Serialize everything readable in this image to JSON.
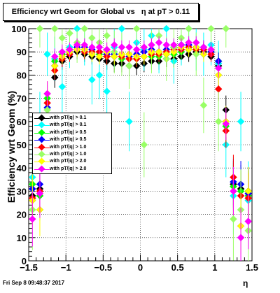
{
  "chart_data": {
    "type": "scatter",
    "title": "Efficiency wrt Geom for Global vs   η at pT > 0.11",
    "xlabel": "η",
    "ylabel": "Efficiency wrt Geom (%)",
    "xlim": [
      -1.5,
      1.5
    ],
    "ylim": [
      0,
      100
    ],
    "x_ticks": [
      "−1.5",
      "−1",
      "−0.5",
      "0",
      "0.5",
      "1",
      "1.5"
    ],
    "y_ticks": [
      "0",
      "10",
      "20",
      "30",
      "40",
      "50",
      "60",
      "70",
      "80",
      "90",
      "100"
    ],
    "grid": true,
    "legend_position": "left-middle",
    "series": [
      {
        "name": "with pT/|q| > 0.1",
        "color": "#000000",
        "values": [
          [
            -1.45,
            28
          ],
          [
            -1.35,
            31
          ],
          [
            -1.25,
            55
          ],
          [
            -1.15,
            79
          ],
          [
            -1.05,
            86
          ],
          [
            -0.95,
            88
          ],
          [
            -0.85,
            90
          ],
          [
            -0.75,
            89
          ],
          [
            -0.65,
            88
          ],
          [
            -0.55,
            87
          ],
          [
            -0.45,
            86
          ],
          [
            -0.35,
            85
          ],
          [
            -0.25,
            85
          ],
          [
            -0.15,
            84
          ],
          [
            -0.05,
            84
          ],
          [
            0.05,
            85
          ],
          [
            0.15,
            86
          ],
          [
            0.25,
            86
          ],
          [
            0.35,
            87
          ],
          [
            0.45,
            87
          ],
          [
            0.55,
            88
          ],
          [
            0.65,
            89
          ],
          [
            0.75,
            90
          ],
          [
            0.85,
            90
          ],
          [
            0.95,
            88
          ],
          [
            1.05,
            84
          ],
          [
            1.15,
            65
          ],
          [
            1.25,
            33
          ],
          [
            1.35,
            31
          ],
          [
            1.45,
            30
          ]
        ]
      },
      {
        "name": "with pT/|q| > 0.1",
        "color": "#00ffff",
        "values": [
          [
            -1.45,
            36
          ],
          [
            -1.35,
            60
          ],
          [
            -1.25,
            89
          ],
          [
            -1.15,
            87
          ],
          [
            -1.05,
            75
          ],
          [
            -0.95,
            92
          ],
          [
            -0.85,
            100
          ],
          [
            -0.75,
            93
          ],
          [
            -0.65,
            78
          ],
          [
            -0.55,
            80
          ],
          [
            -0.45,
            73
          ],
          [
            -0.35,
            92
          ],
          [
            -0.25,
            100
          ],
          [
            -0.15,
            60
          ],
          [
            -0.05,
            94
          ],
          [
            0.05,
            91
          ],
          [
            0.15,
            97
          ],
          [
            0.25,
            90
          ],
          [
            0.35,
            100
          ],
          [
            0.45,
            86
          ],
          [
            0.55,
            93
          ],
          [
            0.65,
            100
          ],
          [
            0.75,
            91
          ],
          [
            0.85,
            89
          ],
          [
            0.95,
            93
          ],
          [
            1.05,
            85
          ],
          [
            1.15,
            50
          ],
          [
            1.25,
            28
          ],
          [
            1.35,
            60
          ],
          [
            1.45,
            26
          ]
        ]
      },
      {
        "name": "with pT/|q| > 0.5",
        "color": "#00ff00",
        "values": [
          [
            -1.45,
            33
          ],
          [
            -1.35,
            28
          ],
          [
            -1.25,
            70
          ],
          [
            -1.15,
            86
          ],
          [
            -1.05,
            89
          ],
          [
            -0.95,
            91
          ],
          [
            -0.85,
            91
          ],
          [
            -0.75,
            90
          ],
          [
            -0.65,
            89
          ],
          [
            -0.55,
            89
          ],
          [
            -0.45,
            88
          ],
          [
            -0.35,
            88
          ],
          [
            -0.25,
            87
          ],
          [
            -0.15,
            87
          ],
          [
            -0.05,
            87
          ],
          [
            0.05,
            88
          ],
          [
            0.15,
            88
          ],
          [
            0.25,
            88
          ],
          [
            0.35,
            89
          ],
          [
            0.45,
            89
          ],
          [
            0.55,
            90
          ],
          [
            0.65,
            91
          ],
          [
            0.75,
            91
          ],
          [
            0.85,
            91
          ],
          [
            0.95,
            90
          ],
          [
            1.05,
            86
          ],
          [
            1.15,
            58
          ],
          [
            1.25,
            32
          ],
          [
            1.35,
            30
          ],
          [
            1.45,
            28
          ]
        ]
      },
      {
        "name": "with pT/|q| > 0.5",
        "color": "#0000ff",
        "values": [
          [
            -1.45,
            31
          ],
          [
            -1.35,
            33
          ],
          [
            -1.25,
            66
          ],
          [
            -1.15,
            84
          ],
          [
            -1.05,
            87
          ],
          [
            -0.95,
            90
          ],
          [
            -0.85,
            92
          ],
          [
            -0.75,
            92
          ],
          [
            -0.65,
            91
          ],
          [
            -0.55,
            90
          ],
          [
            -0.45,
            89
          ],
          [
            -0.35,
            89
          ],
          [
            -0.25,
            89
          ],
          [
            -0.15,
            88
          ],
          [
            -0.05,
            89
          ],
          [
            0.05,
            90
          ],
          [
            0.15,
            91
          ],
          [
            0.25,
            90
          ],
          [
            0.35,
            91
          ],
          [
            0.45,
            92
          ],
          [
            0.55,
            93
          ],
          [
            0.65,
            93
          ],
          [
            0.75,
            92
          ],
          [
            0.85,
            92
          ],
          [
            0.95,
            90
          ],
          [
            1.05,
            86
          ],
          [
            1.15,
            60
          ],
          [
            1.25,
            34
          ],
          [
            1.35,
            33
          ],
          [
            1.45,
            29
          ]
        ]
      },
      {
        "name": "with pT/|q| > 1.0",
        "color": "#ff0000",
        "values": [
          [
            -1.45,
            27
          ],
          [
            -1.35,
            30
          ],
          [
            -1.25,
            68
          ],
          [
            -1.15,
            82
          ],
          [
            -1.05,
            87
          ],
          [
            -0.95,
            89
          ],
          [
            -0.85,
            91
          ],
          [
            -0.75,
            90
          ],
          [
            -0.65,
            90
          ],
          [
            -0.55,
            90
          ],
          [
            -0.45,
            88
          ],
          [
            -0.35,
            88
          ],
          [
            -0.25,
            88
          ],
          [
            -0.15,
            87
          ],
          [
            -0.05,
            87
          ],
          [
            0.05,
            88
          ],
          [
            0.15,
            89
          ],
          [
            0.25,
            89
          ],
          [
            0.35,
            90
          ],
          [
            0.45,
            91
          ],
          [
            0.55,
            91
          ],
          [
            0.65,
            92
          ],
          [
            0.75,
            91
          ],
          [
            0.85,
            91
          ],
          [
            0.95,
            89
          ],
          [
            1.05,
            74
          ],
          [
            1.15,
            56
          ],
          [
            1.25,
            36
          ],
          [
            1.35,
            28
          ],
          [
            1.45,
            27
          ]
        ]
      },
      {
        "name": "with pT/|q| > 1.0",
        "color": "#99ff66",
        "values": [
          [
            -1.45,
            22
          ],
          [
            -1.35,
            100
          ],
          [
            -1.25,
            65
          ],
          [
            -1.15,
            100
          ],
          [
            -1.05,
            96
          ],
          [
            -0.95,
            98
          ],
          [
            -0.85,
            94
          ],
          [
            -0.75,
            100
          ],
          [
            -0.65,
            96
          ],
          [
            -0.55,
            94
          ],
          [
            -0.45,
            97
          ],
          [
            -0.35,
            90
          ],
          [
            -0.25,
            89
          ],
          [
            -0.15,
            84
          ],
          [
            -0.05,
            100
          ],
          [
            0.05,
            50
          ],
          [
            0.15,
            90
          ],
          [
            0.25,
            97
          ],
          [
            0.35,
            87
          ],
          [
            0.45,
            92
          ],
          [
            0.55,
            96
          ],
          [
            0.65,
            100
          ],
          [
            0.75,
            89
          ],
          [
            0.85,
            67
          ],
          [
            0.95,
            100
          ],
          [
            1.05,
            60
          ],
          [
            1.15,
            100
          ],
          [
            1.25,
            18
          ],
          [
            1.35,
            22
          ],
          [
            1.45,
            13
          ]
        ]
      },
      {
        "name": "with pT/|q| > 2.0",
        "color": "#ffff00",
        "values": [
          [
            -1.45,
            26
          ],
          [
            -1.35,
            22
          ],
          [
            -1.25,
            72
          ],
          [
            -1.15,
            84
          ],
          [
            -1.05,
            88
          ],
          [
            -0.95,
            90
          ],
          [
            -0.85,
            91
          ],
          [
            -0.75,
            91
          ],
          [
            -0.65,
            89
          ],
          [
            -0.55,
            88
          ],
          [
            -0.45,
            90
          ],
          [
            -0.35,
            88
          ],
          [
            -0.25,
            89
          ],
          [
            -0.15,
            89
          ],
          [
            -0.05,
            88
          ],
          [
            0.05,
            88
          ],
          [
            0.15,
            90
          ],
          [
            0.25,
            90
          ],
          [
            0.35,
            89
          ],
          [
            0.45,
            90
          ],
          [
            0.55,
            92
          ],
          [
            0.65,
            91
          ],
          [
            0.75,
            92
          ],
          [
            0.85,
            89
          ],
          [
            0.95,
            91
          ],
          [
            1.05,
            80
          ],
          [
            1.15,
            60
          ],
          [
            1.25,
            30
          ],
          [
            1.35,
            15
          ],
          [
            1.45,
            30
          ]
        ]
      },
      {
        "name": "with pT/|q| > 2.0",
        "color": "#ff00ff",
        "values": [
          [
            -1.45,
            18
          ],
          [
            -1.35,
            29
          ],
          [
            -1.25,
            72
          ],
          [
            -1.15,
            88
          ],
          [
            -1.05,
            90
          ],
          [
            -0.95,
            91
          ],
          [
            -0.85,
            93
          ],
          [
            -0.75,
            93
          ],
          [
            -0.65,
            92
          ],
          [
            -0.55,
            92
          ],
          [
            -0.45,
            91
          ],
          [
            -0.35,
            93
          ],
          [
            -0.25,
            92
          ],
          [
            -0.15,
            92
          ],
          [
            -0.05,
            91
          ],
          [
            0.05,
            92
          ],
          [
            0.15,
            93
          ],
          [
            0.25,
            94
          ],
          [
            0.35,
            93
          ],
          [
            0.45,
            93
          ],
          [
            0.55,
            93
          ],
          [
            0.65,
            94
          ],
          [
            0.75,
            94
          ],
          [
            0.85,
            92
          ],
          [
            0.95,
            91
          ],
          [
            1.05,
            83
          ],
          [
            1.15,
            59
          ],
          [
            1.25,
            30
          ],
          [
            1.35,
            10
          ],
          [
            1.45,
            17
          ]
        ]
      }
    ]
  },
  "timestamp": "Fri Sep  8 09:48:37 2017"
}
